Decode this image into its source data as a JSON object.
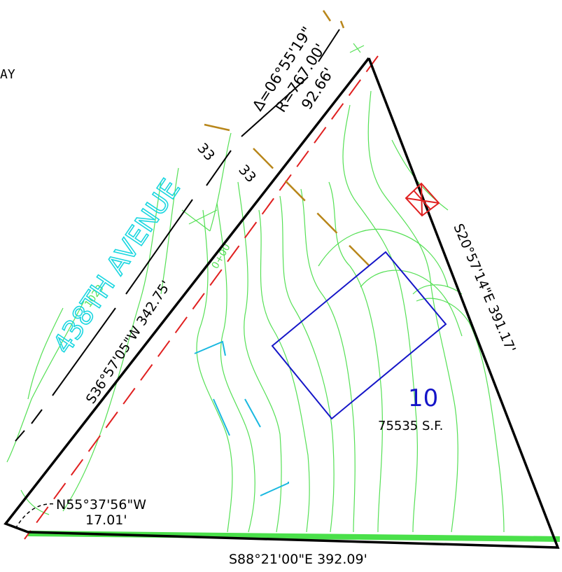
{
  "colors": {
    "background": "#ffffff",
    "boundary": "#000000",
    "contour": "#55e055",
    "setback": "#e02020",
    "easement": "#b8861a",
    "building": "#1515c8",
    "street_name": "#19d6e0",
    "ditch": "#19b8e0",
    "marker": "#e02020",
    "edge_strip": "#4ae04a"
  },
  "icons": {
    "corner_marker": "x-box-marker-icon"
  },
  "edge_text": "AY",
  "street_name": "438TH AVENUE",
  "curve": {
    "delta": "Δ=06°55'19\"",
    "radius": "R=767.00'",
    "length": "92.66'"
  },
  "right_of_way": {
    "outer": "33",
    "inner": "33"
  },
  "bearings": {
    "west": "S36°57'05\"W  342.75'",
    "east": "S20°57'14\"E  391.17'",
    "south": "S88°21'00\"E  392.09'",
    "corner_bearing": "N55°37'56\"W",
    "corner_distance": "17.01'"
  },
  "lot": {
    "number": "10",
    "area": "75535 S.F."
  }
}
